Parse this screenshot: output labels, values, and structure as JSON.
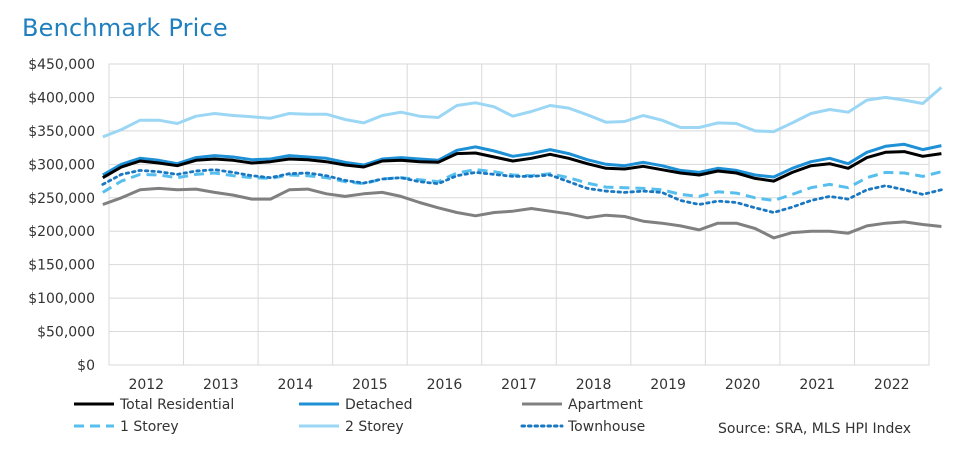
{
  "title": "Benchmark Price",
  "source": "Source: SRA, MLS HPI Index",
  "chart_data": {
    "type": "line",
    "title": "Benchmark Price",
    "xlabel": "",
    "ylabel": "",
    "ylim": [
      0,
      450000
    ],
    "yticks": [
      "$0",
      "$50,000",
      "$100,000",
      "$150,000",
      "$200,000",
      "$250,000",
      "$300,000",
      "$350,000",
      "$400,000",
      "$450,000"
    ],
    "x_tick_labels": [
      "2012",
      "2013",
      "2014",
      "2015",
      "2016",
      "2017",
      "2018",
      "2019",
      "2020",
      "2021",
      "2022"
    ],
    "x": [
      "2011-06",
      "2011-09",
      "2011-12",
      "2012-03",
      "2012-06",
      "2012-09",
      "2012-12",
      "2013-03",
      "2013-06",
      "2013-09",
      "2013-12",
      "2014-03",
      "2014-06",
      "2014-09",
      "2014-12",
      "2015-03",
      "2015-06",
      "2015-09",
      "2015-12",
      "2016-03",
      "2016-06",
      "2016-09",
      "2016-12",
      "2017-03",
      "2017-06",
      "2017-09",
      "2017-12",
      "2018-03",
      "2018-06",
      "2018-09",
      "2018-12",
      "2019-03",
      "2019-06",
      "2019-09",
      "2019-12",
      "2020-03",
      "2020-06",
      "2020-09",
      "2020-12",
      "2021-03",
      "2021-06",
      "2021-09",
      "2021-12",
      "2022-03",
      "2022-06",
      "2022-09"
    ],
    "grid": true,
    "legend_position": "bottom",
    "series": [
      {
        "name": "Total Residential",
        "color": "#000000",
        "style": "solid",
        "values": [
          280000,
          296000,
          305000,
          302000,
          298000,
          306000,
          308000,
          306000,
          302000,
          304000,
          308000,
          307000,
          304000,
          299000,
          296000,
          305000,
          306000,
          304000,
          303000,
          316000,
          317000,
          311000,
          305000,
          309000,
          315000,
          309000,
          301000,
          294000,
          293000,
          297000,
          292000,
          287000,
          284000,
          290000,
          287000,
          279000,
          275000,
          288000,
          298000,
          301000,
          294000,
          310000,
          318000,
          319000,
          312000,
          316000
        ]
      },
      {
        "name": "Detached",
        "color": "#1e90d6",
        "style": "solid",
        "values": [
          284000,
          300000,
          309000,
          306000,
          301000,
          310000,
          313000,
          311000,
          307000,
          308000,
          313000,
          311000,
          309000,
          303000,
          299000,
          308000,
          310000,
          308000,
          306000,
          321000,
          326000,
          320000,
          312000,
          316000,
          322000,
          316000,
          307000,
          300000,
          298000,
          303000,
          298000,
          291000,
          288000,
          294000,
          291000,
          284000,
          281000,
          294000,
          304000,
          309000,
          301000,
          318000,
          327000,
          330000,
          322000,
          328000
        ]
      },
      {
        "name": "Apartment",
        "color": "#808080",
        "style": "solid",
        "values": [
          240000,
          250000,
          262000,
          264000,
          262000,
          263000,
          258000,
          254000,
          248000,
          248000,
          262000,
          263000,
          256000,
          252000,
          256000,
          258000,
          252000,
          243000,
          235000,
          228000,
          223000,
          228000,
          230000,
          234000,
          230000,
          226000,
          220000,
          224000,
          222000,
          215000,
          212000,
          208000,
          202000,
          212000,
          212000,
          204000,
          190000,
          198000,
          200000,
          200000,
          197000,
          208000,
          212000,
          214000,
          210000,
          207000
        ]
      },
      {
        "name": "1 Storey",
        "color": "#57bfee",
        "style": "dashed",
        "values": [
          258000,
          275000,
          285000,
          284000,
          280000,
          285000,
          287000,
          283000,
          280000,
          279000,
          284000,
          283000,
          280000,
          274000,
          271000,
          278000,
          280000,
          277000,
          274000,
          287000,
          292000,
          289000,
          284000,
          283000,
          286000,
          280000,
          272000,
          266000,
          265000,
          264000,
          262000,
          255000,
          252000,
          259000,
          257000,
          250000,
          246000,
          255000,
          265000,
          270000,
          265000,
          280000,
          288000,
          287000,
          282000,
          289000
        ]
      },
      {
        "name": "2 Storey",
        "color": "#9bd7f5",
        "style": "solid",
        "values": [
          341000,
          352000,
          366000,
          366000,
          361000,
          372000,
          376000,
          373000,
          371000,
          369000,
          376000,
          375000,
          375000,
          367000,
          362000,
          373000,
          378000,
          372000,
          370000,
          388000,
          392000,
          386000,
          372000,
          379000,
          388000,
          384000,
          374000,
          363000,
          364000,
          373000,
          366000,
          355000,
          355000,
          362000,
          361000,
          350000,
          349000,
          362000,
          376000,
          382000,
          378000,
          396000,
          400000,
          396000,
          391000,
          415000
        ]
      },
      {
        "name": "Townhouse",
        "color": "#1a78c2",
        "style": "dotted",
        "values": [
          270000,
          285000,
          291000,
          289000,
          285000,
          290000,
          292000,
          288000,
          283000,
          280000,
          286000,
          287000,
          283000,
          276000,
          272000,
          278000,
          280000,
          274000,
          271000,
          283000,
          288000,
          285000,
          282000,
          282000,
          284000,
          274000,
          264000,
          260000,
          258000,
          260000,
          258000,
          246000,
          240000,
          245000,
          243000,
          235000,
          228000,
          236000,
          246000,
          252000,
          248000,
          262000,
          268000,
          262000,
          255000,
          262000
        ]
      }
    ]
  }
}
